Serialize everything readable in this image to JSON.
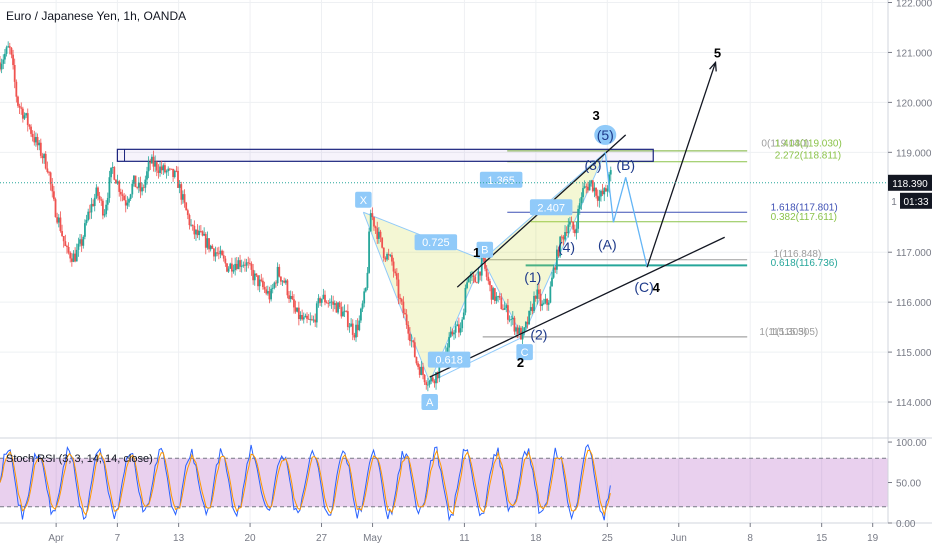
{
  "chart_data": {
    "type": "candlestick",
    "title": "Euro / Japanese Yen, 1h, OANDA",
    "price_axis": {
      "ylim": [
        113.3,
        122.05
      ],
      "ticks": [
        "122.000",
        "121.000",
        "120.000",
        "119.000",
        "117.000",
        "116.000",
        "115.000",
        "114.000"
      ],
      "tick_values": [
        122,
        121,
        120,
        119,
        117,
        116,
        115,
        114
      ],
      "last_price": "118.390",
      "last_price_value": 118.39,
      "countdown": "01:33",
      "countdown_prefix": "1"
    },
    "time_axis": {
      "labels": [
        "Apr",
        "7",
        "13",
        "20",
        "27",
        "May",
        "11",
        "18",
        "25",
        "Jun",
        "8",
        "15",
        "19"
      ],
      "label_day": [
        1,
        7,
        13,
        20,
        27,
        32,
        41,
        48,
        55,
        62,
        69,
        76,
        81
      ],
      "xlim": [
        -4.5,
        82.5
      ]
    },
    "price_path": [
      [
        -4.5,
        120.8
      ],
      [
        -3.6,
        121.1
      ],
      [
        -3.4,
        120.9
      ],
      [
        -2.8,
        120.0
      ],
      [
        -2.0,
        119.7
      ],
      [
        -1.2,
        119.3
      ],
      [
        -0.5,
        119.0
      ],
      [
        0.2,
        118.7
      ],
      [
        0.7,
        118.0
      ],
      [
        1.3,
        117.6
      ],
      [
        2.0,
        117.0
      ],
      [
        2.8,
        116.9
      ],
      [
        3.5,
        117.2
      ],
      [
        4.2,
        117.8
      ],
      [
        5.0,
        118.2
      ],
      [
        5.7,
        117.8
      ],
      [
        6.5,
        118.7
      ],
      [
        7.0,
        118.4
      ],
      [
        7.8,
        118.0
      ],
      [
        8.6,
        118.4
      ],
      [
        9.4,
        118.2
      ],
      [
        10.2,
        118.8
      ],
      [
        11.0,
        118.7
      ],
      [
        11.8,
        118.6
      ],
      [
        12.8,
        118.5
      ],
      [
        13.6,
        117.9
      ],
      [
        14.4,
        117.4
      ],
      [
        15.2,
        117.3
      ],
      [
        16.2,
        117.1
      ],
      [
        17.1,
        116.9
      ],
      [
        17.8,
        116.7
      ],
      [
        18.6,
        116.8
      ],
      [
        19.5,
        116.8
      ],
      [
        20.4,
        116.5
      ],
      [
        21.2,
        116.3
      ],
      [
        22.0,
        116.1
      ],
      [
        22.7,
        116.6
      ],
      [
        23.4,
        116.4
      ],
      [
        24.4,
        115.8
      ],
      [
        25.3,
        115.6
      ],
      [
        26.2,
        115.6
      ],
      [
        26.9,
        116.1
      ],
      [
        27.8,
        116.0
      ],
      [
        28.6,
        115.9
      ],
      [
        29.4,
        115.7
      ],
      [
        30.2,
        115.4
      ],
      [
        30.7,
        115.6
      ],
      [
        31.1,
        116.0
      ],
      [
        31.4,
        116.3
      ],
      [
        31.8,
        117.8
      ],
      [
        32.3,
        117.5
      ],
      [
        33.1,
        117.0
      ],
      [
        33.9,
        116.8
      ],
      [
        34.7,
        116.0
      ],
      [
        35.5,
        115.5
      ],
      [
        36.3,
        114.8
      ],
      [
        37.1,
        114.5
      ],
      [
        37.6,
        114.4
      ],
      [
        38.4,
        114.6
      ],
      [
        39.2,
        115.0
      ],
      [
        40.0,
        115.5
      ],
      [
        40.7,
        115.4
      ],
      [
        41.2,
        116.5
      ],
      [
        42.0,
        116.4
      ],
      [
        42.8,
        116.8
      ],
      [
        43.6,
        116.2
      ],
      [
        44.4,
        116.0
      ],
      [
        45.2,
        115.8
      ],
      [
        46.0,
        115.5
      ],
      [
        46.7,
        115.3
      ],
      [
        47.5,
        115.8
      ],
      [
        48.0,
        116.2
      ],
      [
        48.6,
        115.9
      ],
      [
        49.2,
        116.0
      ],
      [
        49.8,
        116.7
      ],
      [
        50.4,
        117.2
      ],
      [
        51.2,
        117.6
      ],
      [
        51.8,
        117.4
      ],
      [
        52.5,
        118.2
      ],
      [
        53.4,
        118.4
      ],
      [
        54.2,
        118.1
      ],
      [
        54.8,
        118.2
      ],
      [
        55.4,
        118.6
      ]
    ],
    "horizontal_levels": [
      {
        "label": "0(119.030)",
        "value": 119.03,
        "color": "#9e9e9e"
      },
      {
        "label": "1.414(119.030)",
        "value": 119.03,
        "color": "#8bc34a"
      },
      {
        "label": "2.272(118.811)",
        "value": 118.811,
        "color": "#8bc34a"
      },
      {
        "label": "1.618(117.801)",
        "value": 117.801,
        "color": "#3f51b5"
      },
      {
        "label": "0.382(117.611)",
        "value": 117.611,
        "color": "#8bc34a"
      },
      {
        "label": "1(116.848)",
        "value": 116.848,
        "color": "#9e9e9e"
      },
      {
        "label": "0.618(116.736)",
        "value": 116.736,
        "color": "#26a69a"
      },
      {
        "label": "1(115.305)",
        "value": 115.305,
        "color": "#9e9e9e"
      },
      {
        "label": "1(115.305)",
        "value": 115.305,
        "color": "#9e9e9e"
      }
    ],
    "rectangle": {
      "day_from": 7.0,
      "day_to": 59.5,
      "price_low": 118.82,
      "price_high": 119.06
    },
    "harmonic_points": {
      "X": [
        31.1,
        117.8
      ],
      "A": [
        37.6,
        114.4
      ],
      "B": [
        42.8,
        116.85
      ],
      "C": [
        46.7,
        115.3
      ],
      "D": [
        54.8,
        119.0
      ]
    },
    "harmonic_labels": [
      {
        "text": "X",
        "day": 31.1,
        "price": 118.05
      },
      {
        "text": "A",
        "day": 37.6,
        "price": 114.0
      },
      {
        "text": "B",
        "day": 43.0,
        "price": 117.05
      },
      {
        "text": "C",
        "day": 46.9,
        "price": 115.0
      }
    ],
    "ratio_labels": [
      {
        "text": "0.725",
        "day": 38.2,
        "price": 117.2
      },
      {
        "text": "0.618",
        "day": 39.5,
        "price": 114.85
      },
      {
        "text": "1.365",
        "day": 44.6,
        "price": 118.45
      },
      {
        "text": "2.407",
        "day": 49.5,
        "price": 117.9
      }
    ],
    "wave_labels": [
      {
        "text": "(5)",
        "day": 54.8,
        "price": 119.35,
        "color": "#1e3a8a",
        "bold": false,
        "bubble": true
      },
      {
        "text": "(3)",
        "day": 53.6,
        "price": 118.75,
        "color": "#1e3a8a",
        "bold": false,
        "bubble": false
      },
      {
        "text": "(B)",
        "day": 56.8,
        "price": 118.75,
        "color": "#1e3a8a",
        "bold": false,
        "bubble": false
      },
      {
        "text": "(4)",
        "day": 51.0,
        "price": 117.1,
        "color": "#1e3a8a",
        "bold": false,
        "bubble": false
      },
      {
        "text": "(A)",
        "day": 55.0,
        "price": 117.15,
        "color": "#1e3a8a",
        "bold": false,
        "bubble": false
      },
      {
        "text": "(1)",
        "day": 47.7,
        "price": 116.5,
        "color": "#1e3a8a",
        "bold": false,
        "bubble": false
      },
      {
        "text": "(2)",
        "day": 48.3,
        "price": 115.35,
        "color": "#1e3a8a",
        "bold": false,
        "bubble": false
      },
      {
        "text": "(C)",
        "day": 58.6,
        "price": 116.3,
        "color": "#1e3a8a",
        "bold": false,
        "bubble": false
      },
      {
        "text": "1",
        "day": 42.2,
        "price": 117.0,
        "color": "#000000",
        "bold": true,
        "bubble": false
      },
      {
        "text": "2",
        "day": 46.5,
        "price": 114.8,
        "color": "#000000",
        "bold": true,
        "bubble": false
      },
      {
        "text": "3",
        "day": 53.9,
        "price": 119.75,
        "color": "#000000",
        "bold": true,
        "bubble": false
      },
      {
        "text": "4",
        "day": 59.8,
        "price": 116.3,
        "color": "#000000",
        "bold": true,
        "bubble": false
      },
      {
        "text": "5",
        "day": 65.8,
        "price": 121.0,
        "color": "#000000",
        "bold": true,
        "bubble": false
      }
    ],
    "trend_lines": [
      {
        "from": [
          37.6,
          114.5
        ],
        "to": [
          66.5,
          117.3
        ]
      },
      {
        "from": [
          40.3,
          116.3
        ],
        "to": [
          56.8,
          119.35
        ]
      }
    ],
    "projection_path": [
      [
        54.8,
        119.0
      ],
      [
        55.6,
        117.6
      ],
      [
        56.8,
        118.5
      ],
      [
        58.9,
        116.7
      ]
    ],
    "arrow_path": [
      [
        58.9,
        116.7
      ],
      [
        65.6,
        120.8
      ]
    ],
    "stoch_rsi": {
      "label": "Stoch RSI (3, 3, 14, 14, close)",
      "ylim": [
        0,
        105
      ],
      "ticks": [
        "100.00",
        "50.00",
        "0.00"
      ],
      "tick_values": [
        100,
        50,
        0
      ],
      "band": [
        20,
        80
      ],
      "end_day": 55.4
    }
  }
}
